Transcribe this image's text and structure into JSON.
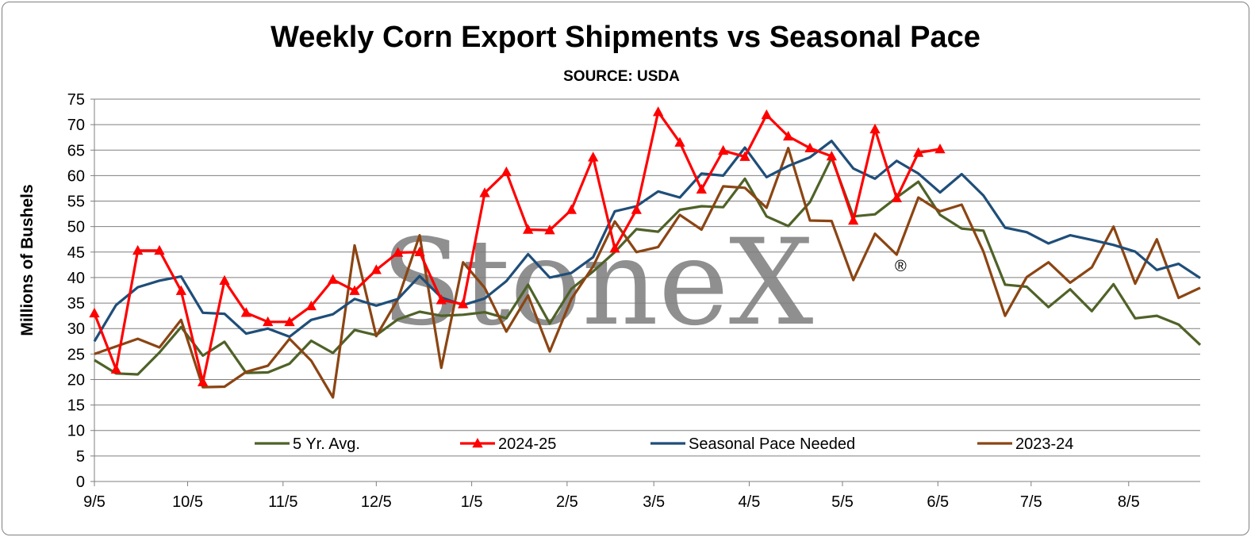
{
  "chart_data": {
    "type": "line",
    "title": "Weekly Corn Export Shipments vs Seasonal Pace",
    "subtitle": "SOURCE: USDA",
    "ylabel": "Millions of Bushels",
    "xlabel": "",
    "ylim": [
      0,
      75
    ],
    "yticks": [
      0,
      5,
      10,
      15,
      20,
      25,
      30,
      35,
      40,
      45,
      50,
      55,
      60,
      65,
      70,
      75
    ],
    "xtick_labels": [
      "9/5",
      "10/5",
      "11/5",
      "12/5",
      "1/5",
      "2/5",
      "3/5",
      "4/5",
      "5/5",
      "6/5",
      "7/5",
      "8/5"
    ],
    "xtick_weeks": [
      0,
      4.3,
      8.7,
      13,
      17.4,
      21.8,
      25.8,
      30.2,
      34.5,
      38.9,
      43.2,
      47.7
    ],
    "grid": "horizontal",
    "legend": "bottom",
    "watermark": "StoneX",
    "watermark_mark": "®",
    "series": [
      {
        "name": "5 Yr. Avg.",
        "color": "#4f6228",
        "marker": "none",
        "values": [
          23.8,
          21.2,
          21.0,
          25.3,
          30.3,
          24.7,
          27.4,
          21.3,
          21.4,
          23.1,
          27.6,
          25.2,
          29.7,
          28.7,
          31.8,
          33.3,
          32.5,
          32.7,
          33.2,
          32.0,
          38.6,
          31.0,
          37.8,
          41.2,
          45.0,
          49.5,
          49.0,
          53.3,
          54.0,
          53.8,
          59.4,
          52.0,
          50.1,
          54.8,
          63.5,
          52.0,
          52.4,
          55.7,
          58.8,
          52.3,
          49.6,
          49.2,
          38.6,
          38.2,
          34.2,
          37.7,
          33.4,
          38.7,
          32.0,
          32.5,
          30.8,
          26.8
        ]
      },
      {
        "name": "2024-25",
        "color": "#ff0000",
        "marker": "triangle",
        "values": [
          33.0,
          22.0,
          45.3,
          45.3,
          37.4,
          19.5,
          39.4,
          33.1,
          31.3,
          31.3,
          34.4,
          39.6,
          37.4,
          41.5,
          44.9,
          45.0,
          35.6,
          34.8,
          56.6,
          60.7,
          49.4,
          49.3,
          53.3,
          63.6,
          45.7,
          53.3,
          72.5,
          66.5,
          57.3,
          64.9,
          63.7,
          71.9,
          67.7,
          65.4,
          63.8,
          51.2,
          69.1,
          55.6,
          64.5,
          65.2
        ]
      },
      {
        "name": "Seasonal Pace Needed",
        "color": "#1f4e79",
        "marker": "none",
        "values": [
          27.5,
          34.6,
          38.1,
          39.4,
          40.2,
          33.1,
          32.9,
          29.0,
          30.0,
          28.4,
          31.7,
          32.8,
          35.8,
          34.5,
          35.8,
          40.3,
          36.1,
          34.6,
          35.9,
          39.3,
          44.6,
          40.0,
          40.9,
          44.0,
          53.0,
          54.0,
          56.9,
          55.7,
          60.4,
          60.0,
          65.5,
          59.7,
          61.9,
          63.6,
          66.8,
          61.4,
          59.4,
          62.9,
          60.4,
          56.7,
          60.3,
          56.1,
          49.8,
          48.9,
          46.7,
          48.3,
          47.4,
          46.4,
          45.1,
          41.5,
          42.7,
          39.9
        ]
      },
      {
        "name": "2023-24",
        "color": "#8b4513",
        "marker": "none",
        "values": [
          25.0,
          26.5,
          28.0,
          26.3,
          31.7,
          18.5,
          18.6,
          21.5,
          22.7,
          28.0,
          23.7,
          16.5,
          46.3,
          28.5,
          35.8,
          48.3,
          22.3,
          43.0,
          38.0,
          29.4,
          36.5,
          25.5,
          35.8,
          42.2,
          51.0,
          45.0,
          46.0,
          52.3,
          49.4,
          57.9,
          57.6,
          53.7,
          65.4,
          51.2,
          51.1,
          39.5,
          48.6,
          44.5,
          55.7,
          53.0,
          54.3,
          45.1,
          32.5,
          40.1,
          43.0,
          39.0,
          42.0,
          50.0,
          38.8,
          47.5,
          36.0,
          38.0
        ]
      }
    ]
  }
}
